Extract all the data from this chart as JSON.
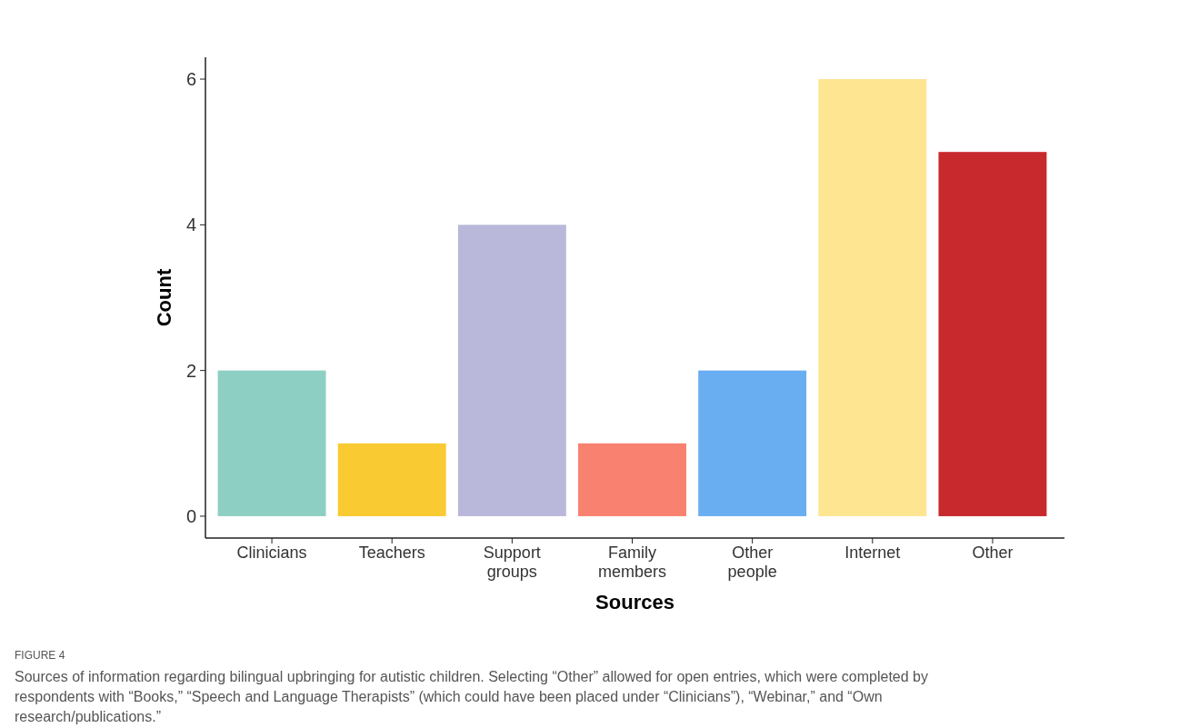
{
  "chart_data": {
    "type": "bar",
    "categories": [
      "Clinicians",
      "Teachers",
      "Support groups",
      "Family members",
      "Other people",
      "Internet",
      "Other"
    ],
    "values": [
      2,
      1,
      4,
      1,
      2,
      6,
      5
    ],
    "colors": [
      "#8ecfc4",
      "#f9ca32",
      "#bab8da",
      "#f88170",
      "#6aaef2",
      "#fde592",
      "#c8292d"
    ],
    "xlabel": "Sources",
    "ylabel": "Count",
    "ylim": [
      -0.3,
      6.3
    ],
    "yticks": [
      0,
      2,
      4,
      6
    ],
    "grid": false,
    "annotations": [
      "FIGURE 4",
      "Sources of information regarding bilingual upbringing for autistic children. Selecting “Other” allowed for open entries, which were completed by respondents with “Books,” “Speech and Language Therapists” (which could have been placed under “Clinicians”), “Webinar,” and “Own research/publications.”"
    ]
  }
}
